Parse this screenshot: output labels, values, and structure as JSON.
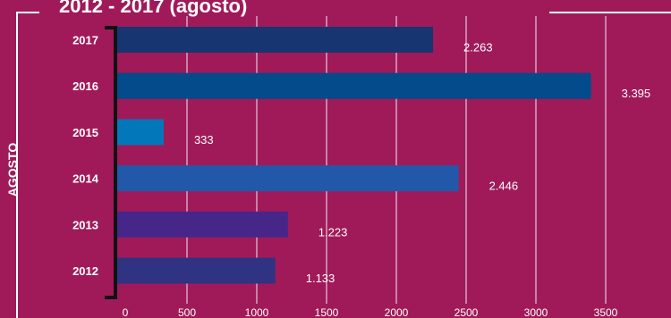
{
  "title": "2012 - 2017 (agosto)",
  "chart_data": {
    "type": "bar",
    "orientation": "horizontal",
    "title": "2012 - 2017 (agosto)",
    "ylabel": "AGOSTO",
    "xlabel": "",
    "xlim": [
      0,
      3800
    ],
    "xticks": [
      0,
      500,
      1000,
      1500,
      2000,
      2500,
      3000,
      3500
    ],
    "categories": [
      "2017",
      "2016",
      "2015",
      "2014",
      "2013",
      "2012"
    ],
    "values": [
      2263,
      3395,
      333,
      2446,
      1223,
      1133
    ],
    "value_labels": [
      "2.263",
      "3.395",
      "333",
      "2.446",
      "1.223",
      "1.133"
    ],
    "bar_colors": [
      "#173571",
      "#034b8a",
      "#0277b9",
      "#2158a8",
      "#47268a",
      "#2f3381"
    ],
    "gridlines": true,
    "background_color": "#a01a5a"
  }
}
